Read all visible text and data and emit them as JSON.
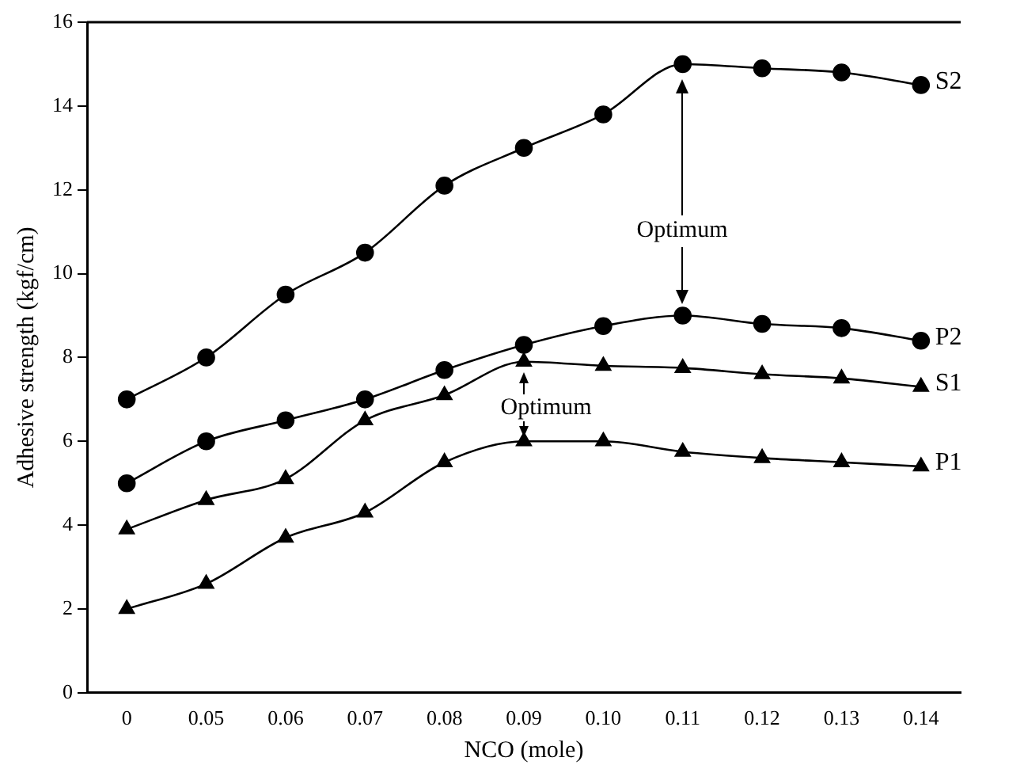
{
  "chart_data": {
    "type": "line",
    "xlabel": "NCO (mole)",
    "ylabel": "Adhesive strength (kgf/cm)",
    "categories": [
      "0",
      "0.05",
      "0.06",
      "0.07",
      "0.08",
      "0.09",
      "0.10",
      "0.11",
      "0.12",
      "0.13",
      "0.14"
    ],
    "series": [
      {
        "name": "S2",
        "color": "#000000",
        "marker": "circle",
        "values": [
          7,
          8,
          9.5,
          10.5,
          12.1,
          13,
          13.8,
          15,
          14.9,
          14.8,
          14.5
        ]
      },
      {
        "name": "P2",
        "color": "#000000",
        "marker": "circle",
        "values": [
          5,
          6,
          6.5,
          7,
          7.7,
          8.3,
          8.75,
          9,
          8.8,
          8.7,
          8.4
        ]
      },
      {
        "name": "S1",
        "color": "#000000",
        "marker": "triangle",
        "values": [
          3.9,
          4.6,
          5.1,
          6.5,
          7.1,
          7.9,
          7.8,
          7.75,
          7.6,
          7.5,
          7.3
        ]
      },
      {
        "name": "P1",
        "color": "#000000",
        "marker": "triangle",
        "values": [
          2,
          2.6,
          3.7,
          4.3,
          5.5,
          6,
          6,
          5.75,
          5.6,
          5.5,
          5.4
        ]
      }
    ],
    "ylim": [
      0,
      16
    ],
    "yticks": [
      0,
      2,
      4,
      6,
      8,
      10,
      12,
      14,
      16
    ],
    "grid": false,
    "legend": false,
    "annotations": [
      "Optimum",
      "Optimum"
    ]
  }
}
